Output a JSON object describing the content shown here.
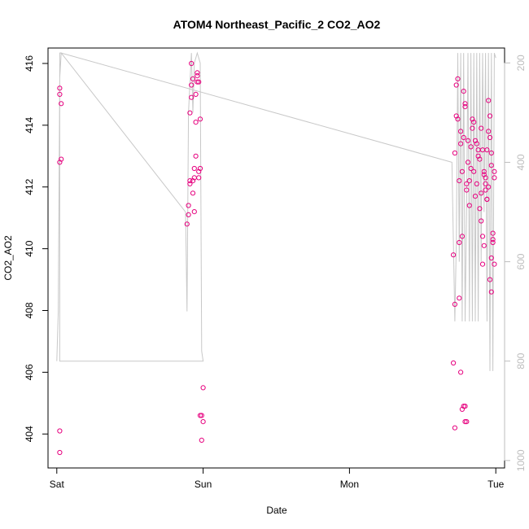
{
  "chart_data": {
    "type": "scatter",
    "title": "ATOM4 Northeast_Pacific_2 CO2_AO2",
    "xlabel": "Date",
    "ylabel": "CO2_AO2",
    "x_ticks": [
      "Sat",
      "Sun",
      "Mon",
      "Tue"
    ],
    "x_tick_values": [
      0,
      1,
      2,
      3
    ],
    "xlim": [
      -0.06,
      3.06
    ],
    "ylim": [
      402.9,
      416.5
    ],
    "y_ticks": [
      404,
      406,
      408,
      410,
      412,
      414,
      416
    ],
    "y2_ticks": [
      200,
      400,
      600,
      800,
      1000
    ],
    "y2lim": [
      1015,
      170
    ],
    "grid": false,
    "colors": {
      "points": "#e6007e",
      "line": "#c8c8c8",
      "axis": "#000000",
      "right_axis": "#bdbdbd"
    },
    "series": [
      {
        "type": "scatter",
        "x": [
          0.02,
          0.02,
          0.02,
          0.03,
          0.02,
          0.02,
          0.03,
          0.89,
          0.9,
          0.9,
          0.91,
          0.91,
          0.91,
          0.92,
          0.92,
          0.92,
          0.93,
          0.93,
          0.93,
          0.94,
          0.94,
          0.94,
          0.95,
          0.95,
          0.95,
          0.96,
          0.96,
          0.96,
          0.97,
          0.97,
          0.97,
          0.98,
          0.98,
          0.98,
          0.99,
          0.99,
          1.0,
          1.0,
          2.71,
          2.72,
          2.72,
          2.73,
          2.73,
          2.74,
          2.74,
          2.75,
          2.75,
          2.76,
          2.76,
          2.77,
          2.77,
          2.78,
          2.78,
          2.79,
          2.79,
          2.8,
          2.8,
          2.81,
          2.81,
          2.82,
          2.82,
          2.83,
          2.83,
          2.84,
          2.84,
          2.85,
          2.85,
          2.86,
          2.86,
          2.87,
          2.87,
          2.88,
          2.88,
          2.89,
          2.89,
          2.9,
          2.9,
          2.91,
          2.91,
          2.92,
          2.92,
          2.93,
          2.93,
          2.94,
          2.94,
          2.95,
          2.95,
          2.96,
          2.96,
          2.97,
          2.97,
          2.98,
          2.98,
          2.99,
          2.99,
          2.71,
          2.72,
          2.75,
          2.76,
          2.77,
          2.78,
          2.79,
          2.79,
          2.8,
          2.9,
          2.91,
          2.92,
          2.93,
          2.94,
          2.95,
          2.96,
          2.97,
          2.97,
          2.98,
          2.99
        ],
        "y": [
          412.8,
          415.2,
          415.0,
          414.7,
          404.1,
          403.4,
          412.9,
          410.8,
          411.1,
          411.4,
          412.1,
          412.2,
          414.4,
          414.9,
          415.3,
          416.0,
          415.5,
          412.2,
          411.8,
          411.2,
          412.3,
          412.6,
          413.0,
          414.1,
          415.0,
          415.4,
          415.7,
          415.6,
          415.4,
          412.3,
          412.5,
          412.6,
          414.2,
          404.6,
          403.8,
          404.6,
          404.4,
          405.5,
          409.8,
          408.2,
          413.1,
          414.3,
          415.3,
          415.5,
          414.2,
          412.2,
          410.2,
          413.8,
          413.4,
          410.4,
          412.5,
          413.6,
          415.1,
          414.7,
          414.6,
          412.1,
          411.9,
          412.8,
          413.5,
          411.4,
          412.2,
          413.3,
          412.6,
          414.2,
          413.9,
          414.1,
          412.5,
          413.5,
          411.7,
          413.4,
          412.1,
          413.0,
          413.2,
          412.9,
          411.3,
          410.9,
          411.8,
          409.5,
          410.4,
          410.1,
          412.4,
          412.3,
          411.9,
          411.6,
          413.2,
          414.8,
          413.8,
          413.6,
          414.3,
          413.1,
          412.7,
          410.2,
          410.5,
          412.5,
          412.3,
          406.3,
          404.2,
          408.4,
          406.0,
          404.8,
          404.9,
          404.9,
          404.4,
          404.4,
          413.9,
          413.2,
          412.5,
          412.1,
          411.6,
          412.0,
          409.0,
          408.6,
          409.7,
          410.3,
          409.5
        ]
      },
      {
        "type": "line",
        "axis": "right",
        "x": [
          0.0,
          0.01,
          0.02,
          0.03,
          0.88,
          0.89,
          0.9,
          0.92,
          0.93,
          0.94,
          0.96,
          0.98,
          0.99,
          1.0,
          0.99,
          0.02,
          0.02,
          0.03,
          2.7,
          2.72,
          2.73,
          2.74,
          2.75,
          2.76,
          2.77,
          2.78,
          2.79,
          2.8,
          2.81,
          2.82,
          2.83,
          2.84,
          2.85,
          2.86,
          2.87,
          2.88,
          2.89,
          2.9,
          2.91,
          2.92,
          2.93,
          2.94,
          2.95,
          2.96,
          2.97,
          2.98,
          2.99,
          3.0
        ],
        "y": [
          800,
          700,
          230,
          180,
          500,
          700,
          300,
          180,
          300,
          200,
          180,
          200,
          780,
          800,
          800,
          800,
          180,
          180,
          400,
          720,
          560,
          180,
          600,
          180,
          720,
          180,
          720,
          500,
          180,
          720,
          180,
          720,
          180,
          720,
          180,
          720,
          180,
          600,
          180,
          500,
          180,
          720,
          180,
          820,
          180,
          820,
          180,
          190
        ]
      }
    ]
  }
}
